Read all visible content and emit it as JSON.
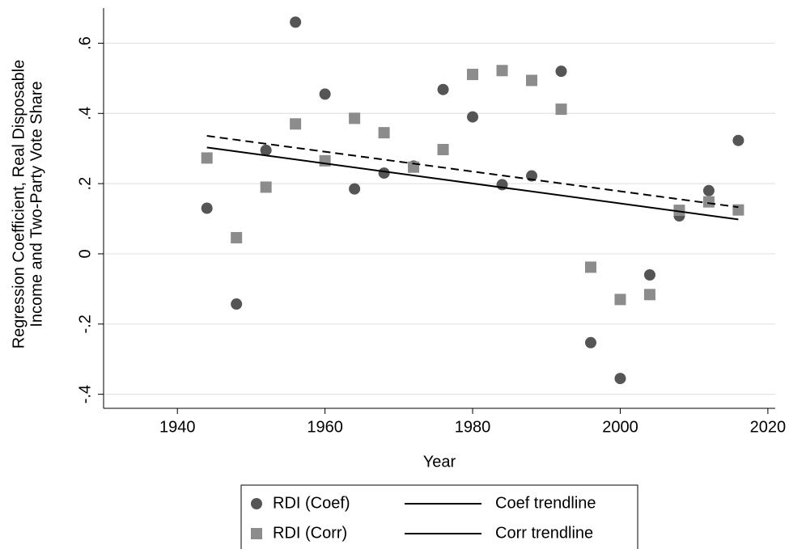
{
  "chart_data": {
    "type": "scatter",
    "xlabel": "Year",
    "ylabel": [
      "Regression Coefficient, Real Disposable",
      "Income and Two-Party Vote Share"
    ],
    "xlim": [
      1930,
      2021
    ],
    "xticks": [
      1940,
      1960,
      1980,
      2000,
      2020
    ],
    "ylim": [
      -0.44,
      0.7
    ],
    "yticks": [
      {
        "value": -0.4,
        "label": "-.4"
      },
      {
        "value": -0.2,
        "label": "-.2"
      },
      {
        "value": 0,
        "label": "0"
      },
      {
        "value": 0.2,
        "label": ".2"
      },
      {
        "value": 0.4,
        "label": ".4"
      },
      {
        "value": 0.6,
        "label": ".6"
      }
    ],
    "grid": true,
    "series": [
      {
        "name": "RDI (Coef)",
        "color": "#555555",
        "marker": "circle",
        "x": [
          1944,
          1948,
          1952,
          1956,
          1960,
          1964,
          1968,
          1972,
          1976,
          1980,
          1984,
          1988,
          1992,
          1996,
          2000,
          2004,
          2008,
          2012,
          2016
        ],
        "values": [
          0.13,
          -0.143,
          0.295,
          0.66,
          0.455,
          0.185,
          0.23,
          0.25,
          0.468,
          0.39,
          0.197,
          0.222,
          0.52,
          -0.253,
          -0.355,
          -0.06,
          0.108,
          0.18,
          0.323
        ]
      },
      {
        "name": "RDI (Corr)",
        "color": "#8c8c8c",
        "marker": "square",
        "x": [
          1944,
          1948,
          1952,
          1956,
          1960,
          1964,
          1968,
          1972,
          1976,
          1980,
          1984,
          1988,
          1992,
          1996,
          2000,
          2004,
          2008,
          2012,
          2016
        ],
        "values": [
          0.273,
          0.046,
          0.19,
          0.37,
          0.265,
          0.386,
          0.345,
          0.247,
          0.297,
          0.511,
          0.522,
          0.494,
          0.412,
          -0.038,
          -0.13,
          -0.116,
          0.124,
          0.148,
          0.125
        ]
      },
      {
        "name": "Coef trendline",
        "color": "#000000",
        "marker": "line",
        "dashed": false,
        "x": [
          1944,
          2016
        ],
        "values": [
          0.303,
          0.098
        ]
      },
      {
        "name": "Corr trendline",
        "color": "#000000",
        "marker": "line",
        "dashed": true,
        "x": [
          1944,
          2016
        ],
        "values": [
          0.336,
          0.133
        ]
      }
    ]
  }
}
